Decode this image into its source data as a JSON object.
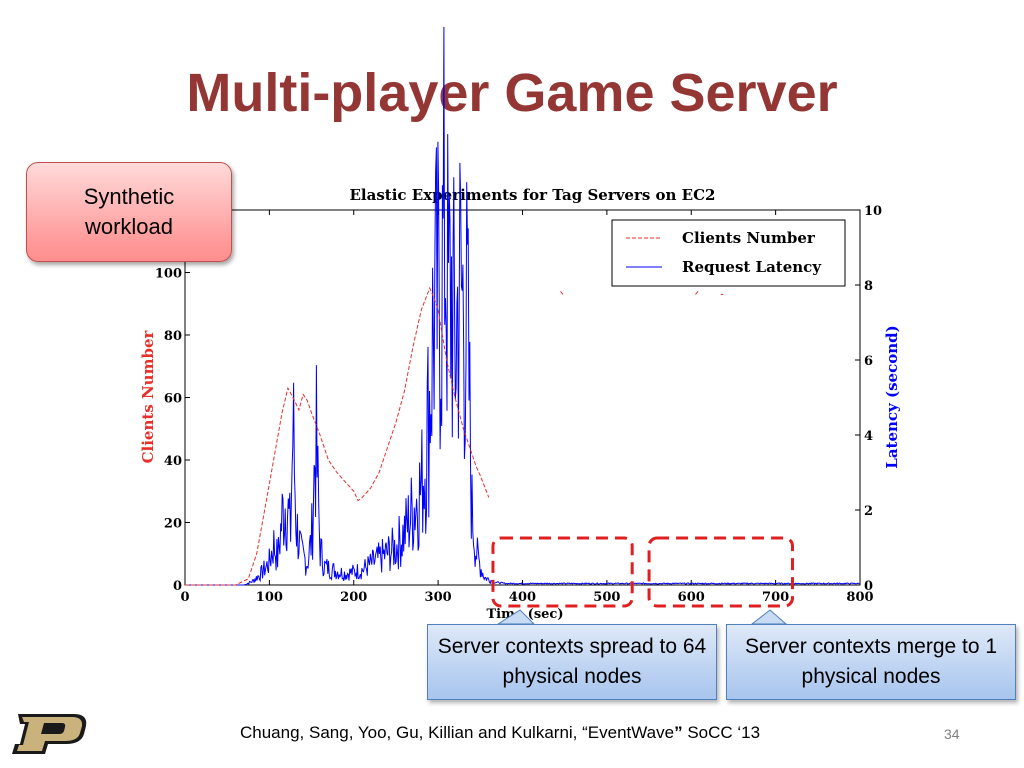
{
  "slide": {
    "title": "Multi-player Game Server",
    "callout_workload": "Synthetic workload",
    "callout_spread": "Server contexts spread to 64 physical nodes",
    "callout_merge": "Server contexts merge to 1 physical nodes",
    "citation_part1": "Chuang, Sang, Yoo, Gu, Killian and Kulkarni, “EventWave",
    "citation_part2": "”",
    "citation_part3": " SoCC ‘13",
    "page_number": "34"
  },
  "colors": {
    "title": "#943634",
    "clients_series": "#e8302a",
    "latency_series": "#0000ff",
    "highlight_box": "#e02020"
  },
  "chart_data": {
    "type": "line",
    "title": "Elastic Experiments for Tag Servers on EC2",
    "xlabel": "Time (sec)",
    "ylabel_left": "Clients Number",
    "ylabel_right": "Latency (second)",
    "xlim": [
      0,
      800
    ],
    "ylim_left": [
      0,
      120
    ],
    "ylim_right": [
      0,
      10
    ],
    "x_ticks": [
      "0",
      "100",
      "200",
      "300",
      "400",
      "500",
      "600",
      "700",
      "800"
    ],
    "y_left_ticks": [
      "0",
      "20",
      "40",
      "60",
      "80",
      "100"
    ],
    "y_right_ticks": [
      "0",
      "2",
      "4",
      "6",
      "8",
      "10"
    ],
    "legend_position": "top-right",
    "legend": [
      "Clients Number",
      "Request Latency"
    ],
    "series": [
      {
        "name": "Clients Number",
        "axis": "left",
        "style": "dashed",
        "x": [
          0,
          20,
          40,
          60,
          75,
          85,
          95,
          105,
          115,
          122,
          128,
          135,
          140,
          145,
          150,
          160,
          170,
          180,
          190,
          200,
          205,
          210,
          220,
          230,
          240,
          250,
          260,
          270,
          280,
          290,
          295,
          300,
          310,
          320,
          330,
          340,
          345,
          350,
          360
        ],
        "values": [
          0,
          0,
          0,
          0,
          2,
          10,
          25,
          40,
          55,
          63,
          60,
          56,
          61,
          59,
          55,
          48,
          40,
          36,
          33,
          30,
          27,
          28,
          31,
          36,
          44,
          52,
          62,
          76,
          88,
          95,
          92,
          88,
          72,
          60,
          50,
          42,
          38,
          35,
          28
        ]
      },
      {
        "name": "Clients Number (sparse tail)",
        "axis": "left",
        "style": "dashed",
        "x": [
          445,
          448,
          605,
          608,
          635,
          638
        ],
        "values": [
          94,
          93,
          93,
          94,
          93,
          93
        ]
      },
      {
        "name": "Request Latency",
        "axis": "right",
        "style": "solid",
        "x": [
          0,
          70,
          80,
          90,
          100,
          105,
          110,
          115,
          120,
          125,
          128,
          132,
          138,
          145,
          150,
          155,
          160,
          165,
          175,
          190,
          210,
          230,
          250,
          260,
          270,
          280,
          285,
          290,
          295,
          300,
          305,
          308,
          312,
          316,
          320,
          325,
          330,
          335,
          340,
          345,
          350,
          355,
          365,
          380,
          400,
          500,
          560,
          600,
          650,
          700,
          800
        ],
        "values": [
          0,
          0,
          0.1,
          0.3,
          0.6,
          1.1,
          0.7,
          1.8,
          2.3,
          1.4,
          4.2,
          1.6,
          0.8,
          0.6,
          1.2,
          4.0,
          1.0,
          0.5,
          0.4,
          0.3,
          0.4,
          0.7,
          1.0,
          1.4,
          2.0,
          2.6,
          3.4,
          5.0,
          7.2,
          7.5,
          8.2,
          9.9,
          7.4,
          7.9,
          6.2,
          8.0,
          7.4,
          6.8,
          2.0,
          0.9,
          0.5,
          0.2,
          0.1,
          0.05,
          0.05,
          0.05,
          0.05,
          0.05,
          0.05,
          0.05,
          0.05
        ]
      }
    ],
    "highlight_regions": [
      {
        "x_range": [
          365,
          530
        ],
        "label": "Server contexts spread to 64 physical nodes"
      },
      {
        "x_range": [
          550,
          720
        ],
        "label": "Server contexts merge to 1 physical nodes"
      }
    ]
  }
}
